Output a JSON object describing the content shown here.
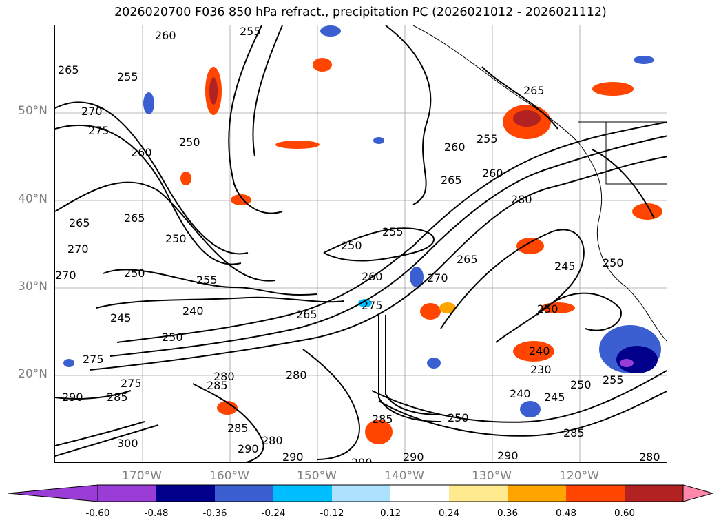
{
  "title": "2026020700 F036 850 hPa refract., precipitation PC (2026021012 - 2026021112)",
  "map": {
    "lat_labels": [
      {
        "label": "50°N",
        "lat": 50
      },
      {
        "label": "40°N",
        "lat": 40
      },
      {
        "label": "30°N",
        "lat": 30
      },
      {
        "label": "20°N",
        "lat": 20
      }
    ],
    "lon_labels": [
      {
        "label": "170°W",
        "lon": -170
      },
      {
        "label": "160°W",
        "lon": -160
      },
      {
        "label": "150°W",
        "lon": -150
      },
      {
        "label": "140°W",
        "lon": -140
      },
      {
        "label": "130°W",
        "lon": -130
      },
      {
        "label": "120°W",
        "lon": -120
      }
    ],
    "extent": {
      "lon_min": -180,
      "lon_max": -110,
      "lat_min": 10,
      "lat_max": 60
    },
    "contour_labels": [
      "260",
      "255",
      "265",
      "270",
      "275",
      "250",
      "255",
      "260",
      "265",
      "250",
      "265",
      "270",
      "270",
      "250",
      "255",
      "265",
      "240",
      "250",
      "245",
      "275",
      "275",
      "290",
      "285",
      "280",
      "285",
      "280",
      "285",
      "290",
      "280",
      "290",
      "300",
      "260",
      "265",
      "260",
      "280",
      "255",
      "250",
      "260",
      "270",
      "265",
      "275",
      "250",
      "245",
      "250",
      "240",
      "230",
      "240",
      "245",
      "250",
      "255",
      "285",
      "290",
      "290",
      "250",
      "285",
      "280",
      "265",
      "255",
      "290"
    ]
  },
  "colorbar": {
    "ticks": [
      "-0.60",
      "-0.48",
      "-0.36",
      "-0.24",
      "-0.12",
      "0.12",
      "0.24",
      "0.36",
      "0.48",
      "0.60"
    ],
    "colors": {
      "under": "#9a3dd6",
      "bins": [
        "#9a3dd6",
        "#00008b",
        "#3b5fd1",
        "#00bfff",
        "#ade2ff",
        "#ffffff",
        "#ffea8f",
        "#ffa500",
        "#ff4500",
        "#b22222",
        "#ff88aa"
      ],
      "over": "#ff88aa"
    }
  }
}
